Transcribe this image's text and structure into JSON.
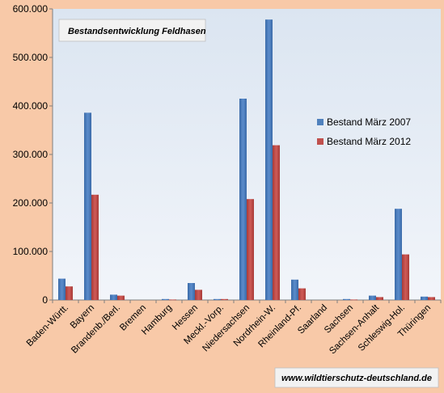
{
  "chart_data": {
    "type": "bar",
    "title": "Bestandsentwicklung Feldhasen",
    "categories": [
      "Baden-Württ.",
      "Bayern",
      "Brandenb./Berl.",
      "Bremen",
      "Hamburg",
      "Hessen",
      "Meckl.-Vorp.",
      "Niedersachsen",
      "Nordrhein-W.",
      "Rheinland-Pf.",
      "Saarland",
      "Sachsen",
      "Sachsen-Anhalt",
      "Schleswig-Hol.",
      "Thüringen"
    ],
    "series": [
      {
        "name": "Bestand März 2007",
        "values": [
          44000,
          386000,
          11000,
          0,
          2000,
          35000,
          2000,
          415000,
          578000,
          42000,
          0,
          2000,
          9000,
          188000,
          7000
        ]
      },
      {
        "name": "Bestand März 2012",
        "values": [
          28000,
          217000,
          9000,
          0,
          1000,
          21000,
          2000,
          208000,
          319000,
          24000,
          0,
          1000,
          6000,
          94000,
          6000
        ]
      }
    ],
    "ylim": [
      0,
      600000
    ],
    "yticks": [
      "0",
      "100.000",
      "200.000",
      "300.000",
      "400.000",
      "500.000",
      "600.000"
    ],
    "grid": false,
    "legend": "right",
    "colors": {
      "series1": "#4f81bd",
      "series2": "#c0504d",
      "plot_bg": "#dbe5f1",
      "page_bg": "#f8c9a8"
    }
  },
  "watermark": "www.wildtierschutz-deutschland.de"
}
